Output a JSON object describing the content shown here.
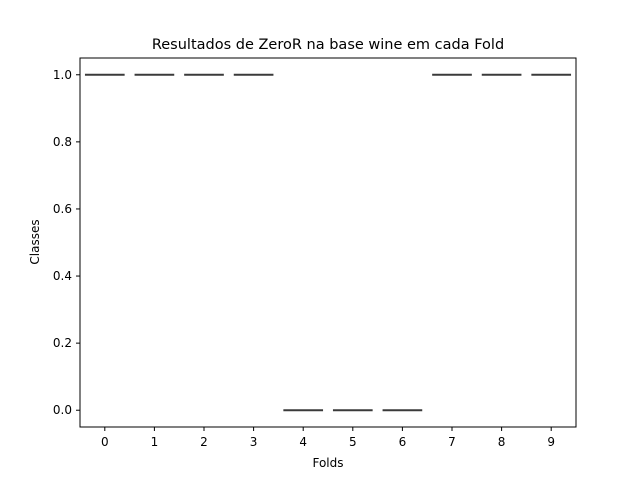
{
  "chart_data": {
    "type": "box",
    "title": "Resultados de ZeroR na base wine em cada Fold",
    "xlabel": "Folds",
    "ylabel": "Classes",
    "categories": [
      "0",
      "1",
      "2",
      "3",
      "4",
      "5",
      "6",
      "7",
      "8",
      "9"
    ],
    "values": [
      1.0,
      1.0,
      1.0,
      1.0,
      0.0,
      0.0,
      0.0,
      1.0,
      1.0,
      1.0
    ],
    "ylim": [
      -0.05,
      1.05
    ],
    "yticks": [
      0.0,
      0.2,
      0.4,
      0.6,
      0.8,
      1.0
    ],
    "ytick_labels": [
      "0.0",
      "0.2",
      "0.4",
      "0.6",
      "0.8",
      "1.0"
    ],
    "grid": false,
    "box_color": "#3a3a3a"
  }
}
